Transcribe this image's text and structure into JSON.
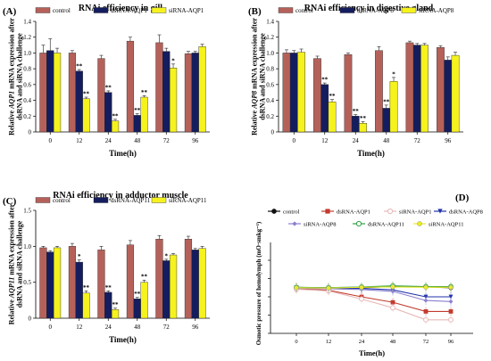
{
  "chart_data": [
    {
      "type": "bar",
      "panel": "(A)",
      "title": "RNAi efficiency in gill",
      "ylabel": "Relative AQP1 mRNA expression after dsRNA and siRNA challenge",
      "ylabel_gene": "AQP1",
      "xlabel": "Time(h)",
      "categories": [
        "0",
        "12",
        "24",
        "48",
        "72",
        "96"
      ],
      "ylim": [
        0,
        1.4
      ],
      "yticks": [
        "0",
        "0.2",
        "0.4",
        "0.6",
        "0.8",
        "1.0",
        "1.2",
        "1.4"
      ],
      "series": [
        {
          "name": "control",
          "color": "#b5615a",
          "values": [
            1.0,
            1.0,
            0.93,
            1.15,
            1.13,
            0.99
          ],
          "errors": [
            0.1,
            0.03,
            0.04,
            0.05,
            0.1,
            0.03
          ],
          "marks": [
            "",
            "",
            "",
            "",
            "",
            ""
          ]
        },
        {
          "name": "dsRNA-AQP1",
          "color": "#141d5e",
          "values": [
            1.03,
            0.77,
            0.5,
            0.21,
            1.02,
            1.0
          ],
          "errors": [
            0.15,
            0.02,
            0.02,
            0.02,
            0.04,
            0.02
          ],
          "marks": [
            "",
            "**",
            "**",
            "**",
            "",
            ""
          ]
        },
        {
          "name": "siRNA-AQP1",
          "color": "#f5f21e",
          "values": [
            1.0,
            0.42,
            0.14,
            0.44,
            0.81,
            1.08
          ],
          "errors": [
            0.06,
            0.02,
            0.02,
            0.02,
            0.05,
            0.03
          ],
          "marks": [
            "",
            "**",
            "**",
            "**",
            "*",
            ""
          ]
        }
      ]
    },
    {
      "type": "bar",
      "panel": "(B)",
      "title": "RNAi efficiency in digestive gland",
      "ylabel": "Relative AQP8 mRNA expression after dsRNA and siRNA challenge",
      "ylabel_gene": "AQP8",
      "xlabel": "Time(h)",
      "categories": [
        "0",
        "12",
        "24",
        "48",
        "72",
        "96"
      ],
      "ylim": [
        0,
        1.4
      ],
      "yticks": [
        "0",
        "0.2",
        "0.4",
        "0.6",
        "0.8",
        "1.0",
        "1.2",
        "1.4"
      ],
      "series": [
        {
          "name": "control",
          "color": "#b5615a",
          "values": [
            1.0,
            0.93,
            0.98,
            1.03,
            1.13,
            1.07
          ],
          "errors": [
            0.04,
            0.03,
            0.02,
            0.05,
            0.02,
            0.02
          ],
          "marks": [
            "",
            "",
            "",
            "",
            "",
            ""
          ]
        },
        {
          "name": "dsRNA-AQP8",
          "color": "#141d5e",
          "values": [
            1.0,
            0.6,
            0.2,
            0.3,
            1.1,
            0.91
          ],
          "errors": [
            0.03,
            0.02,
            0.02,
            0.04,
            0.02,
            0.04
          ],
          "marks": [
            "",
            "**",
            "**",
            "**",
            "",
            ""
          ]
        },
        {
          "name": "siRNA-AQP8",
          "color": "#f5f21e",
          "values": [
            1.01,
            0.38,
            0.11,
            0.64,
            1.1,
            0.97
          ],
          "errors": [
            0.04,
            0.03,
            0.02,
            0.05,
            0.02,
            0.04
          ],
          "marks": [
            "",
            "**",
            "**",
            "*",
            "",
            ""
          ]
        }
      ]
    },
    {
      "type": "bar",
      "panel": "(C)",
      "title": "RNAi efficiency in adductor muscle",
      "ylabel": "Relative AQP11 mRNA expression after dsRNA and siRNA challenge",
      "ylabel_gene": "AQP11",
      "xlabel": "Time(h)",
      "categories": [
        "0",
        "12",
        "24",
        "48",
        "72",
        "96"
      ],
      "ylim": [
        0,
        1.5
      ],
      "yticks": [
        "0",
        "0.5",
        "1.0",
        "1.5"
      ],
      "series": [
        {
          "name": "control",
          "color": "#b5615a",
          "values": [
            0.98,
            1.0,
            0.95,
            1.02,
            1.1,
            1.1
          ],
          "errors": [
            0.02,
            0.04,
            0.05,
            0.06,
            0.05,
            0.04
          ],
          "marks": [
            "",
            "",
            "",
            "",
            "",
            ""
          ]
        },
        {
          "name": "dsRNA-AQP11",
          "color": "#141d5e",
          "values": [
            0.92,
            0.78,
            0.36,
            0.27,
            0.8,
            0.95
          ],
          "errors": [
            0.02,
            0.03,
            0.02,
            0.02,
            0.02,
            0.02
          ],
          "marks": [
            "",
            "*",
            "**",
            "**",
            "*",
            ""
          ]
        },
        {
          "name": "siRNA-AQP11",
          "color": "#f5f21e",
          "values": [
            0.98,
            0.35,
            0.12,
            0.5,
            0.88,
            0.97
          ],
          "errors": [
            0.02,
            0.03,
            0.02,
            0.03,
            0.02,
            0.03
          ],
          "marks": [
            "",
            "**",
            "**",
            "**",
            "",
            ""
          ]
        }
      ]
    },
    {
      "type": "line",
      "panel": "(D)",
      "title": "",
      "ylabel": "Osmotic pressure of hemolymph (mO·smkg⁻¹)",
      "xlabel": "Time(h)",
      "x": [
        0,
        12,
        24,
        48,
        72,
        96
      ],
      "xticks": [
        "0",
        "12",
        "24",
        "48",
        "72",
        "96"
      ],
      "ylim": [
        500,
        700
      ],
      "yticks": [
        "500",
        "550",
        "600",
        "650",
        "700"
      ],
      "series": [
        {
          "name": "control",
          "color": "#111111",
          "marker": "circle-filled",
          "values": [
            625,
            625,
            625,
            628,
            627,
            625
          ]
        },
        {
          "name": "dsRNA-AQP1",
          "color": "#c23b2e",
          "marker": "square-filled",
          "values": [
            622,
            618,
            600,
            585,
            560,
            560
          ]
        },
        {
          "name": "siRNA-AQP1",
          "color": "#e8b8b8",
          "marker": "circle-open",
          "values": [
            621,
            616,
            594,
            570,
            537,
            537
          ]
        },
        {
          "name": "dsRNA-AQP8",
          "color": "#2233aa",
          "marker": "triangle-down",
          "values": [
            626,
            624,
            623,
            619,
            600,
            600
          ]
        },
        {
          "name": "siRNA-AQP8",
          "color": "#8a7fd0",
          "marker": "diamond",
          "values": [
            624,
            622,
            620,
            615,
            590,
            587
          ]
        },
        {
          "name": "dsRNA-AQP11",
          "color": "#2ea043",
          "marker": "circle-open",
          "values": [
            626,
            625,
            627,
            630,
            628,
            628
          ]
        },
        {
          "name": "siRNA-AQP11",
          "color": "#eaea2a",
          "marker": "circle-filled",
          "values": [
            625,
            624,
            626,
            627,
            626,
            626
          ]
        }
      ]
    }
  ]
}
